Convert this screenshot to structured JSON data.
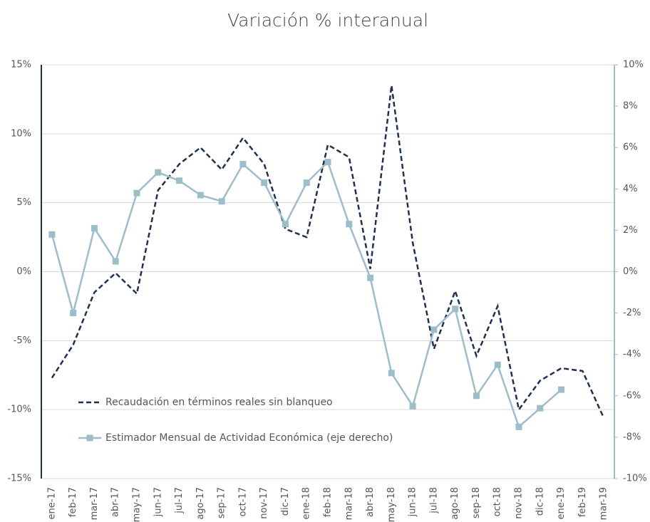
{
  "chart_data": {
    "type": "line",
    "title": "Variación % interanual",
    "categories": [
      "ene-17",
      "feb-17",
      "mar-17",
      "abr-17",
      "may-17",
      "jun-17",
      "jul-17",
      "ago-17",
      "sep-17",
      "oct-17",
      "nov-17",
      "dic-17",
      "ene-18",
      "feb-18",
      "mar-18",
      "abr-18",
      "may-18",
      "jun-18",
      "jul-18",
      "ago-18",
      "sep-18",
      "oct-18",
      "nov-18",
      "dic-18",
      "ene-19",
      "feb-19",
      "mar-19"
    ],
    "series": [
      {
        "name": "Recaudación en términos reales sin blanqueo",
        "color": "#1f3050",
        "dashed": true,
        "values": [
          -7.7,
          -5.3,
          -1.5,
          -0.1,
          -1.6,
          5.9,
          7.8,
          9.0,
          7.4,
          9.7,
          7.8,
          3.1,
          2.5,
          9.2,
          8.3,
          0.2,
          13.5,
          2.1,
          -5.6,
          -1.4,
          -6.1,
          -2.5,
          -10.0,
          -7.9,
          -7.0,
          -7.2,
          -10.6
        ]
      },
      {
        "name": "Estimador Mensual de Actividad Económica (eje derecho)",
        "color": "#9dbdc9",
        "axis": "y2",
        "marker": "square",
        "values": [
          1.8,
          -2.0,
          2.1,
          0.5,
          3.8,
          4.8,
          4.4,
          3.7,
          3.4,
          5.2,
          4.3,
          2.3,
          4.3,
          5.3,
          2.3,
          -0.3,
          -4.9,
          -6.5,
          -2.8,
          -1.8,
          -6.0,
          -4.5,
          -7.5,
          -6.6,
          -5.7,
          null,
          null
        ]
      }
    ],
    "ylim": [
      -15,
      15
    ],
    "yticks": [
      {
        "value": -15,
        "label": "-15%"
      },
      {
        "value": -10,
        "label": "-10%"
      },
      {
        "value": -5,
        "label": "-5%"
      },
      {
        "value": 0,
        "label": "0%"
      },
      {
        "value": 5,
        "label": "5%"
      },
      {
        "value": 10,
        "label": "10%"
      },
      {
        "value": 15,
        "label": "15%"
      }
    ],
    "y2lim": [
      -10,
      10
    ],
    "y2ticks": [
      {
        "value": -10,
        "label": "-10%"
      },
      {
        "value": -8,
        "label": "-8%"
      },
      {
        "value": -6,
        "label": "-6%"
      },
      {
        "value": -4,
        "label": "-4%"
      },
      {
        "value": -2,
        "label": "-2%"
      },
      {
        "value": 0,
        "label": "0%"
      },
      {
        "value": 2,
        "label": "2%"
      },
      {
        "value": 4,
        "label": "4%"
      },
      {
        "value": 6,
        "label": "6%"
      },
      {
        "value": 8,
        "label": "8%"
      },
      {
        "value": 10,
        "label": "10%"
      }
    ],
    "grid": true,
    "legend": "lower-left"
  }
}
